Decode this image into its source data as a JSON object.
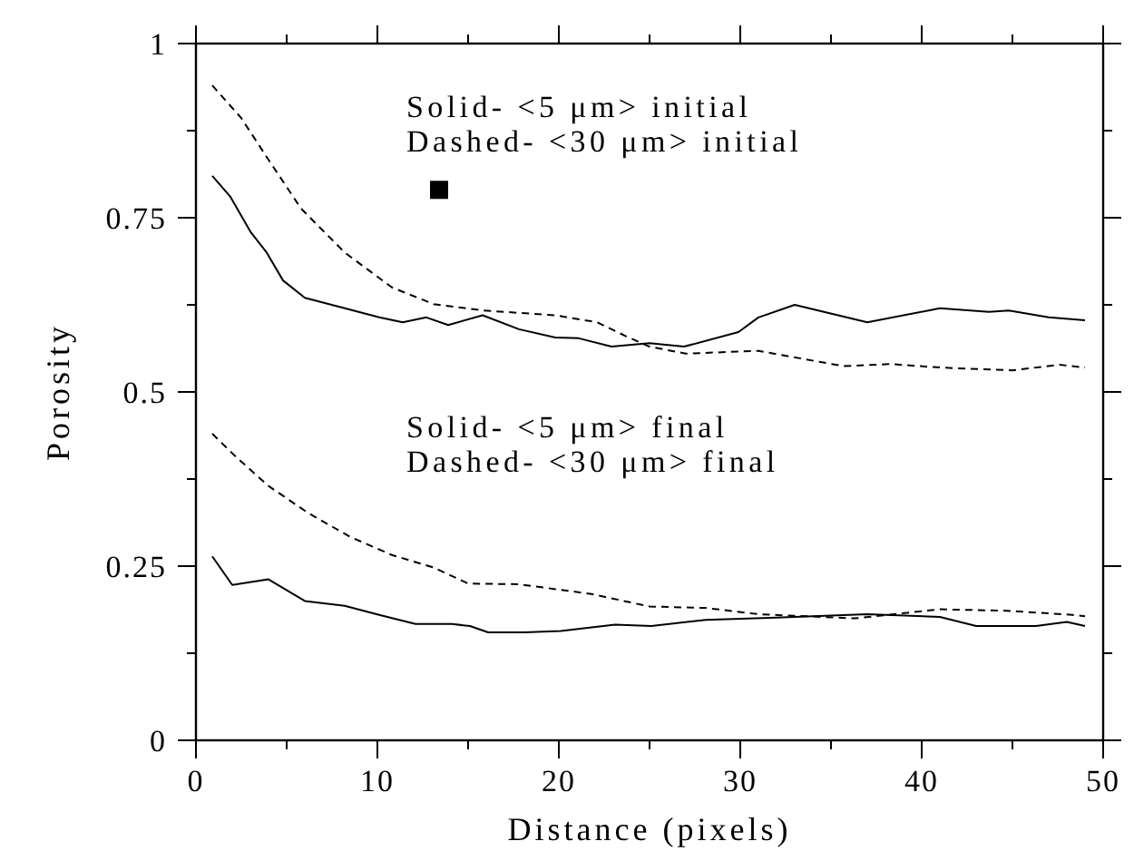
{
  "chart_data": {
    "type": "line",
    "xlabel": "Distance (pixels)",
    "ylabel": "Porosity",
    "xlim": [
      0,
      50
    ],
    "ylim": [
      0,
      1
    ],
    "xticks": [
      0,
      {
        "value": 5,
        "label": null
      },
      10,
      {
        "value": 15,
        "label": null
      },
      20,
      {
        "value": 25,
        "label": null
      },
      30,
      {
        "value": 35,
        "label": null
      },
      40,
      {
        "value": 45,
        "label": null
      },
      50
    ],
    "yticks": [
      0,
      {
        "value": 0.125,
        "label": null
      },
      0.25,
      {
        "value": 0.375,
        "label": null
      },
      0.5,
      {
        "value": 0.625,
        "label": null
      },
      0.75,
      {
        "value": 0.875,
        "label": null
      },
      1
    ],
    "grid": false,
    "annotations": [
      "Solid- <5 μm> initial",
      "Dashed- <30 μm> initial",
      "Solid- <5 μm> final",
      "Dashed- <30 μm> final"
    ],
    "series": [
      {
        "color": "#000000",
        "line_style": "solid",
        "x": [
          0.9,
          1.9,
          3,
          3.9,
          4.8,
          6,
          8.2,
          10.1,
          11.4,
          12.7,
          13.9,
          15.8,
          17.8,
          19.8,
          21.1,
          22.9,
          25,
          26.9,
          29.9,
          31,
          33,
          37,
          41,
          43.7,
          44.8,
          47,
          49
        ],
        "values": [
          0.81,
          0.78,
          0.73,
          0.7,
          0.66,
          0.635,
          0.62,
          0.607,
          0.6,
          0.607,
          0.596,
          0.61,
          0.59,
          0.578,
          0.577,
          0.565,
          0.57,
          0.565,
          0.586,
          0.607,
          0.625,
          0.6,
          0.62,
          0.615,
          0.617,
          0.607,
          0.603
        ]
      },
      {
        "color": "#000000",
        "line_style": "dashed",
        "x": [
          0.9,
          2.5,
          3.9,
          5.8,
          8.2,
          10.8,
          13.1,
          15.8,
          19.8,
          22.1,
          23.7,
          25,
          27,
          31,
          35.7,
          38.3,
          41,
          45,
          47.6,
          49
        ],
        "values": [
          0.94,
          0.893,
          0.837,
          0.763,
          0.7,
          0.65,
          0.626,
          0.617,
          0.61,
          0.6,
          0.58,
          0.565,
          0.555,
          0.559,
          0.537,
          0.54,
          0.535,
          0.531,
          0.539,
          0.535
        ]
      },
      {
        "color": "#000000",
        "line_style": "solid",
        "x": [
          0.9,
          2,
          4,
          6,
          8.2,
          10.1,
          12.1,
          14.1,
          15.1,
          16.1,
          18.1,
          20.1,
          23.1,
          25.1,
          28.1,
          32,
          37,
          41,
          43,
          46.3,
          48,
          49
        ],
        "values": [
          0.264,
          0.223,
          0.231,
          0.2,
          0.193,
          0.18,
          0.167,
          0.167,
          0.164,
          0.155,
          0.155,
          0.157,
          0.166,
          0.164,
          0.173,
          0.176,
          0.181,
          0.177,
          0.164,
          0.164,
          0.17,
          0.164
        ]
      },
      {
        "color": "#000000",
        "line_style": "dashed",
        "x": [
          0.9,
          2.2,
          4,
          6.2,
          8.5,
          10.8,
          13.1,
          15,
          17.8,
          21.8,
          25,
          28.1,
          31,
          36.3,
          41,
          44.7,
          48.3,
          49
        ],
        "values": [
          0.44,
          0.407,
          0.365,
          0.326,
          0.292,
          0.266,
          0.248,
          0.225,
          0.224,
          0.21,
          0.192,
          0.19,
          0.181,
          0.175,
          0.188,
          0.186,
          0.18,
          0.178
        ]
      },
      {
        "type": "scatter",
        "color": "#000000",
        "marker": "square",
        "x": [
          13.4
        ],
        "values": [
          0.79
        ]
      }
    ]
  }
}
